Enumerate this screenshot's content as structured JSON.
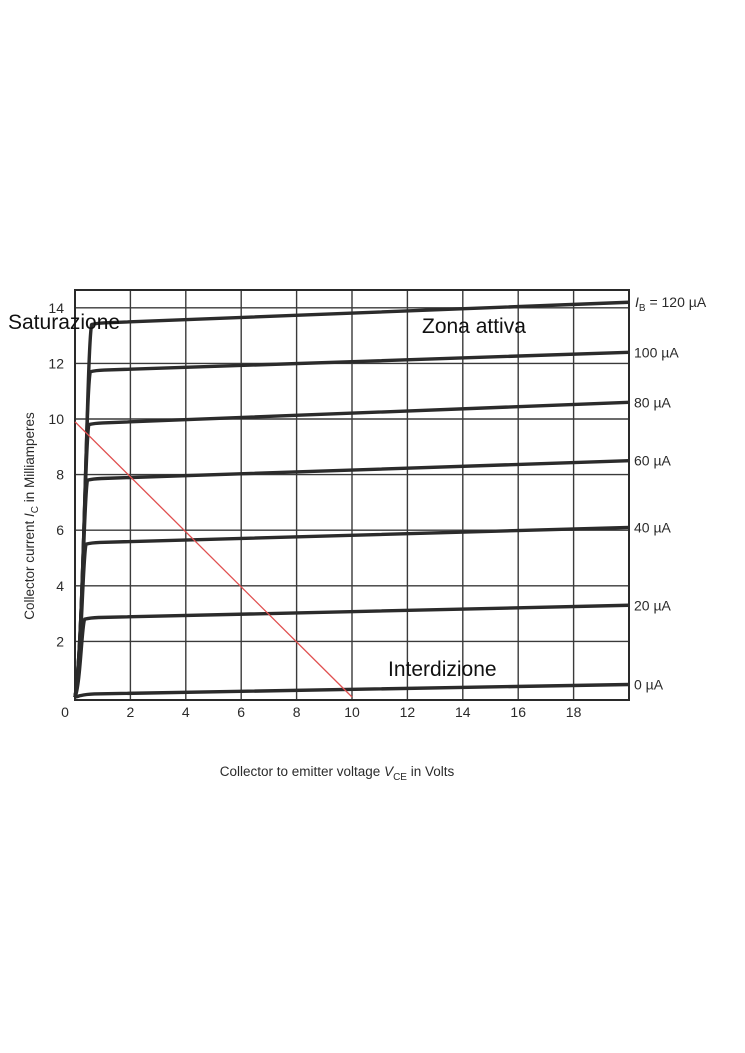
{
  "chart_data": {
    "type": "line",
    "xlabel": "Collector to emitter voltage V_CE in Volts",
    "xlabel_parts": {
      "main": "Collector to emitter voltage ",
      "var": "V",
      "sub": "CE",
      "unit": " in Volts"
    },
    "ylabel": "Collector current I_C in Milliamperes",
    "ylabel_parts": {
      "main": "Collector current ",
      "var": "I",
      "sub": "C",
      "unit": " in Milliamperes"
    },
    "xlim": [
      0,
      20
    ],
    "ylim": [
      0,
      15.2
    ],
    "x_ticks": [
      0,
      2,
      4,
      6,
      8,
      10,
      12,
      14,
      16,
      18
    ],
    "y_ticks": [
      2,
      4,
      6,
      8,
      10,
      12,
      14
    ],
    "grid": true,
    "series": [
      {
        "name": "I_B = 120 µA",
        "label": "= 120 µA",
        "label_var": "I",
        "label_sub": "B",
        "knee_v": 0.6,
        "i_knee": 13.4,
        "i_end": 14.2
      },
      {
        "name": "100 µA",
        "label": "100 µA",
        "knee_v": 0.55,
        "i_knee": 11.7,
        "i_end": 12.4
      },
      {
        "name": "80 µA",
        "label": "80 µA",
        "knee_v": 0.5,
        "i_knee": 9.8,
        "i_end": 10.6
      },
      {
        "name": "60 µA",
        "label": "60 µA",
        "knee_v": 0.45,
        "i_knee": 7.8,
        "i_end": 8.5
      },
      {
        "name": "40 µA",
        "label": "40 µA",
        "knee_v": 0.4,
        "i_knee": 5.5,
        "i_end": 6.1
      },
      {
        "name": "20 µA",
        "label": "20 µA",
        "knee_v": 0.35,
        "i_knee": 2.8,
        "i_end": 3.3
      },
      {
        "name": "0 µA",
        "label": "0 µA",
        "knee_v": 0.2,
        "i_knee": 0.05,
        "i_end": 0.45
      }
    ],
    "load_line": {
      "x": [
        0,
        10
      ],
      "y": [
        9.9,
        0
      ],
      "color": "#e05050"
    },
    "annotations": {
      "saturation": "Saturazione",
      "active": "Zona attiva",
      "cutoff": "Interdizione"
    }
  }
}
